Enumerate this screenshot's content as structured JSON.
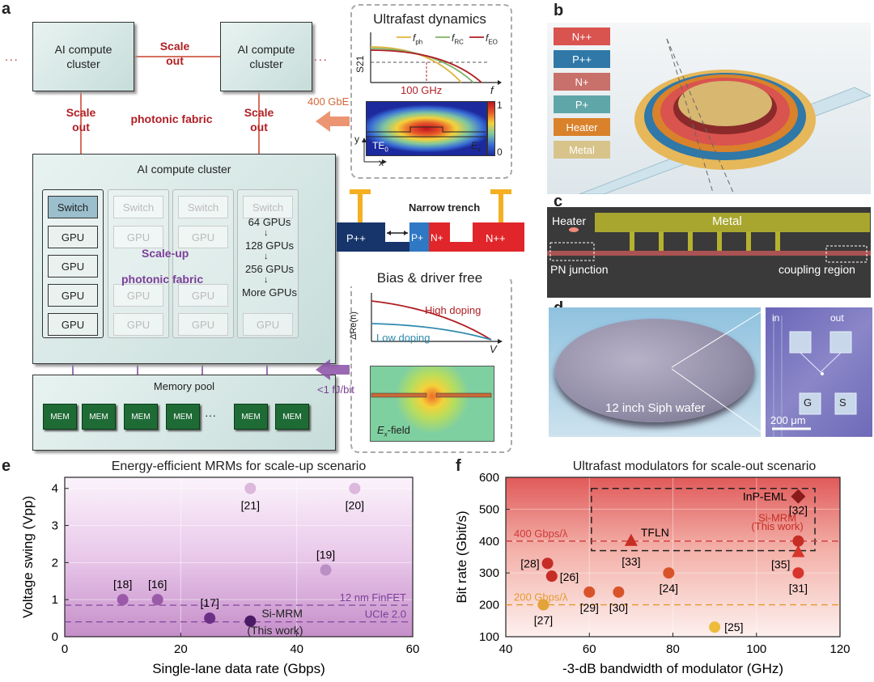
{
  "panel_labels": {
    "a": "a",
    "b": "b",
    "c": "c",
    "d": "d",
    "e": "e",
    "f": "f"
  },
  "panel_a": {
    "cluster_top": "AI compute cluster",
    "scale_out": "Scale out",
    "photonic_fabric": "photonic fabric",
    "ellipsis": "...",
    "big_cluster_title": "AI compute cluster",
    "switch": "Switch",
    "gpu": "GPU",
    "gpu_counts": [
      "64 GPUs",
      "128 GPUs",
      "256 GPUs",
      "More GPUs"
    ],
    "scale_up": "Scale-up",
    "scale_up_fabric": "photonic fabric",
    "memory_pool": "Memory pool",
    "mem": "MEM",
    "mem_ellipsis": "···",
    "gbe": "400 GbE",
    "fj": "<1 fJ/bit"
  },
  "ultrafast": {
    "title": "Ultrafast dynamics",
    "legend": [
      "f",
      "f",
      "f"
    ],
    "legend_sub": [
      "ph",
      "RC",
      "EO"
    ],
    "ylabel": "S21",
    "xlabel": "f",
    "freq": "100 GHz",
    "mode": "TE",
    "mode_sub": "0",
    "field": "E",
    "field_sub": "x",
    "cbar_max": "1",
    "cbar_min": "0",
    "axis_y": "y",
    "axis_x": "x",
    "colors": {
      "ph": "#e0b33a",
      "rc": "#7fb36a",
      "eo": "#b01f24"
    }
  },
  "trench": {
    "title": "Narrow trench",
    "regions": [
      "P++",
      "P+",
      "N+",
      "N++"
    ]
  },
  "bias": {
    "title": "Bias & driver free",
    "ylabel": "ΔRe(n)",
    "xlabel": "V",
    "high": "High doping",
    "low": "Low doping",
    "field": "E",
    "field_sub": "x",
    "field_suffix": "-field"
  },
  "panel_b": {
    "layers": [
      "N++",
      "P++",
      "N+",
      "P+",
      "Heater",
      "Metal"
    ],
    "layer_colors": [
      "#d9534f",
      "#2f78a8",
      "#c8706a",
      "#5fa6a8",
      "#d9822b",
      "#d8c48a"
    ]
  },
  "panel_c": {
    "heater": "Heater",
    "metal": "Metal",
    "pn": "PN junction",
    "coupling": "coupling region"
  },
  "panel_d": {
    "wafer": "12 inch Siph wafer",
    "scale": "200 μm",
    "in": "in",
    "out": "out",
    "g": "G",
    "s": "S"
  },
  "chart_data": [
    {
      "type": "scatter",
      "title": "Energy-efficient MRMs for scale-up scenario",
      "xlabel": "Single-lane data rate (Gbps)",
      "ylabel": "Voltage swing (Vpp)",
      "xlim": [
        0,
        60
      ],
      "ylim": [
        0,
        4.3
      ],
      "xticks": [
        0,
        20,
        40,
        60
      ],
      "yticks": [
        0,
        1,
        2,
        3,
        4
      ],
      "points": [
        {
          "x": 10,
          "y": 1,
          "label": "[18]",
          "color": "#9a5aa8"
        },
        {
          "x": 16,
          "y": 1,
          "label": "[16]",
          "color": "#9a5aa8"
        },
        {
          "x": 25,
          "y": 0.5,
          "label": "[17]",
          "color": "#6b2f86"
        },
        {
          "x": 32,
          "y": 0.42,
          "label": "Si-MRM",
          "label2": "(This work)",
          "color": "#4a1a66"
        },
        {
          "x": 32,
          "y": 4,
          "label": "[21]",
          "color": "#dbb8dc"
        },
        {
          "x": 45,
          "y": 1.8,
          "label": "[19]",
          "color": "#b98fc4"
        },
        {
          "x": 50,
          "y": 4,
          "label": "[20]",
          "color": "#dbb8dc"
        }
      ],
      "hlines": [
        {
          "y": 0.85,
          "label": "12 nm FinFET"
        },
        {
          "y": 0.4,
          "label": "UCIe 2.0"
        }
      ]
    },
    {
      "type": "scatter",
      "title": "Ultrafast modulators for scale-out scenario",
      "xlabel": "-3-dB bandwidth of modulator (GHz)",
      "ylabel": "Bit rate (Gbit/s)",
      "xlim": [
        40,
        120
      ],
      "ylim": [
        100,
        600
      ],
      "xticks": [
        40,
        60,
        80,
        100,
        120
      ],
      "yticks": [
        100,
        200,
        300,
        400,
        500,
        600
      ],
      "points": [
        {
          "x": 110,
          "y": 540,
          "label": "[32]",
          "color": "#8b1a1a",
          "shape": "diamond"
        },
        {
          "x": 70,
          "y": 400,
          "label": "TFLN",
          "color": "#c62d25",
          "shape": "triangle"
        },
        {
          "x": 110,
          "y": 365,
          "label": "[35]",
          "color": "#d8342b",
          "shape": "triangle"
        },
        {
          "x": 110,
          "y": 400,
          "label": "",
          "color": "#c62d25",
          "shape": "circle"
        },
        {
          "x": 110,
          "y": 300,
          "label": "[31]",
          "color": "#d8342b",
          "shape": "circle"
        },
        {
          "x": 50,
          "y": 330,
          "label": "[28]",
          "color": "#c62d25",
          "shape": "circle"
        },
        {
          "x": 51,
          "y": 290,
          "label": "[26]",
          "color": "#c62d25",
          "shape": "circle"
        },
        {
          "x": 60,
          "y": 240,
          "label": "[29]",
          "color": "#d9532a",
          "shape": "circle"
        },
        {
          "x": 67,
          "y": 240,
          "label": "[30]",
          "color": "#d9532a",
          "shape": "circle"
        },
        {
          "x": 79,
          "y": 300,
          "label": "[24]",
          "color": "#d9532a",
          "shape": "circle"
        },
        {
          "x": 49,
          "y": 200,
          "label": "[27]",
          "color": "#e3a33a",
          "shape": "circle"
        },
        {
          "x": 90,
          "y": 130,
          "label": "[25]",
          "color": "#edbc3a",
          "shape": "circle"
        }
      ],
      "labels": {
        "inp": "InP-EML",
        "si": "Si-MRM",
        "si2": "(This work)",
        "tfln_ref": "[33]"
      },
      "hlines": [
        {
          "y": 400,
          "label": "400 Gbps/λ",
          "color": "#cf3a3a"
        },
        {
          "y": 200,
          "label": "200 Gbps/λ",
          "color": "#e69a2e"
        }
      ]
    }
  ]
}
